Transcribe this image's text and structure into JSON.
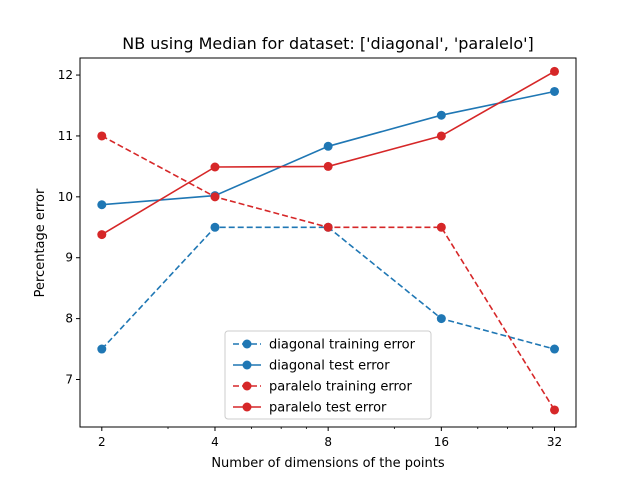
{
  "chart_data": {
    "type": "line",
    "title": "NB using Median for dataset: ['diagonal', 'paralelo']",
    "xlabel": "Number of dimensions of the points",
    "ylabel": "Percentage error",
    "x_scale": "log2",
    "x": [
      2,
      4,
      8,
      16,
      32
    ],
    "x_tick_labels": [
      "2",
      "4",
      "8",
      "16",
      "32"
    ],
    "y_ticks": [
      7,
      8,
      9,
      10,
      11,
      12
    ],
    "xlim": [
      1.75,
      36.5
    ],
    "ylim": [
      6.22,
      12.28
    ],
    "grid": false,
    "legend_position": "bottom-center",
    "series": [
      {
        "name": "diagonal training error",
        "color": "#1f77b4",
        "linestyle": "dashed",
        "marker": "circle",
        "values": [
          7.5,
          9.5,
          9.5,
          8.0,
          7.5
        ]
      },
      {
        "name": "diagonal test error",
        "color": "#1f77b4",
        "linestyle": "solid",
        "marker": "circle",
        "values": [
          9.87,
          10.02,
          10.83,
          11.34,
          11.73
        ]
      },
      {
        "name": "paralelo training error",
        "color": "#d62728",
        "linestyle": "dashed",
        "marker": "circle",
        "values": [
          11.0,
          10.0,
          9.5,
          9.5,
          6.5
        ]
      },
      {
        "name": "paralelo test error",
        "color": "#d62728",
        "linestyle": "solid",
        "marker": "circle",
        "values": [
          9.38,
          10.49,
          10.5,
          11.0,
          12.06
        ]
      }
    ]
  }
}
